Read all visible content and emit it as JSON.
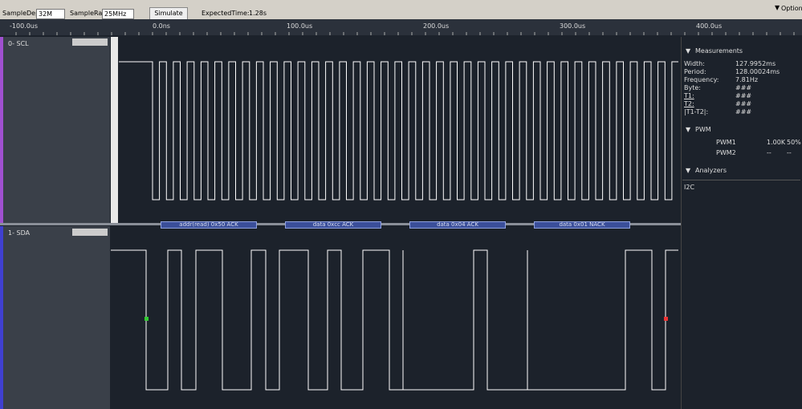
{
  "toolbar": {
    "sample_depth_label": "SampleDepth",
    "sample_depth": "32M",
    "sample_rate_label": "SampleRate",
    "sample_rate": "25MHz",
    "simulate": "Simulate",
    "expected_time_label": "ExpectedTime:",
    "expected_time": "1.28s",
    "options": "Options"
  },
  "ruler": [
    "-100.0us",
    "0.0ns",
    "100.0us",
    "200.0us",
    "300.0us",
    "400.0us"
  ],
  "channels": [
    {
      "label": "0- SCL"
    },
    {
      "label": "1- SDA"
    }
  ],
  "decodes": [
    "addr(read) 0x50 ACK",
    "data 0xcc ACK",
    "data 0x04 ACK",
    "data 0x01 NACK"
  ],
  "measurements": {
    "title": "Measurements",
    "rows": [
      [
        "Width:",
        "127.9952ms"
      ],
      [
        "Period:",
        "128.00024ms"
      ],
      [
        "Frequency:",
        "7.81Hz"
      ],
      [
        "Byte:",
        "###"
      ],
      [
        "T1:",
        "###"
      ],
      [
        "T2:",
        "###"
      ],
      [
        "|T1-T2|:",
        "###"
      ]
    ]
  },
  "pwm": {
    "title": "PWM",
    "rows": [
      [
        "PWM1",
        "1.00K",
        "50%"
      ],
      [
        "PWM2",
        "--",
        "--"
      ]
    ]
  },
  "analyzers": {
    "title": "Analyzers",
    "items": [
      "I2C"
    ]
  }
}
